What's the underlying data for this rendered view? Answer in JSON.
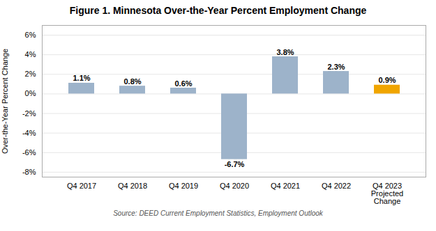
{
  "chart_data": {
    "type": "bar",
    "title": "Figure 1. Minnesota Over-the-Year Percent Employment Change",
    "categories": [
      "Q4 2017",
      "Q4 2018",
      "Q4 2019",
      "Q4 2020",
      "Q4 2021",
      "Q4 2022",
      "Q4 2023\nProjected\nChange"
    ],
    "values": [
      1.1,
      0.8,
      0.6,
      -6.7,
      3.8,
      2.3,
      0.9
    ],
    "value_labels": [
      "1.1%",
      "0.8%",
      "0.6%",
      "-6.7%",
      "3.8%",
      "2.3%",
      "0.9%"
    ],
    "data_labels": true,
    "colors": [
      "#9db3ca",
      "#9db3ca",
      "#9db3ca",
      "#9db3ca",
      "#9db3ca",
      "#9db3ca",
      "#f0a500"
    ],
    "ylabel": "Over-the-Year Percent Change",
    "ylim": [
      -8.5,
      7.0
    ],
    "yticks": [
      {
        "value": -8,
        "label": "-8%"
      },
      {
        "value": -6,
        "label": "-6%"
      },
      {
        "value": -4,
        "label": "-4%"
      },
      {
        "value": -2,
        "label": "-2%"
      },
      {
        "value": 0,
        "label": "0%"
      },
      {
        "value": 2,
        "label": "2%"
      },
      {
        "value": 4,
        "label": "4%"
      },
      {
        "value": 6,
        "label": "6%"
      }
    ],
    "grid": true,
    "source": "Source: DEED Current Employment Statistics, Employment Outlook"
  }
}
